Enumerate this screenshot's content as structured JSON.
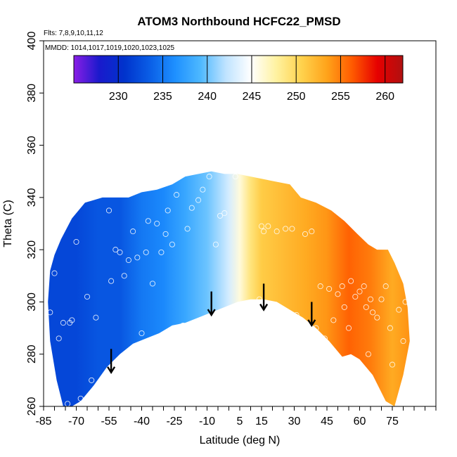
{
  "chart_data": {
    "type": "heatmap",
    "title": "ATOM3 Northbound HCFC22_PMSD",
    "flights_label": "Flts: 7,8,9,10,11,12",
    "dates_label": "MMDD: 1014,1017,1019,1020,1023,1025",
    "xlabel": "Latitude (deg N)",
    "ylabel": "Theta (C)",
    "xlim": [
      -85,
      95
    ],
    "ylim": [
      260,
      400
    ],
    "x_tick_labels": [
      "-85",
      "-70",
      "-55",
      "-40",
      "-25",
      "-10",
      "5",
      "15",
      "30",
      "45",
      "60",
      "75"
    ],
    "x_tick_values": [
      -85,
      -70,
      -55,
      -40,
      -25,
      -10,
      5,
      15,
      30,
      45,
      60,
      75
    ],
    "y_tick_labels": [
      "260",
      "280",
      "300",
      "320",
      "340",
      "360",
      "380",
      "400"
    ],
    "y_tick_values": [
      260,
      280,
      300,
      320,
      340,
      360,
      380,
      400
    ],
    "colorbar": {
      "range": [
        225,
        262
      ],
      "tick_labels": [
        "230",
        "235",
        "240",
        "245",
        "250",
        "255",
        "260"
      ],
      "tick_values": [
        230,
        235,
        240,
        245,
        250,
        255,
        260
      ],
      "colors": [
        "#8a1ee6",
        "#1a1acc",
        "#0033cc",
        "#0a5ee6",
        "#1e90ff",
        "#4db8ff",
        "#bfe3ff",
        "#ffffff",
        "#fff2a0",
        "#ffd24d",
        "#ffa31a",
        "#ff5a00",
        "#e60000",
        "#b01010"
      ]
    },
    "domain_boundary": [
      [
        -82,
        312
      ],
      [
        -80,
        318
      ],
      [
        -77,
        324
      ],
      [
        -72,
        332
      ],
      [
        -66,
        338
      ],
      [
        -58,
        340
      ],
      [
        -52,
        340
      ],
      [
        -46,
        340
      ],
      [
        -40,
        342
      ],
      [
        -33,
        343
      ],
      [
        -26,
        345
      ],
      [
        -20,
        348
      ],
      [
        -14,
        349
      ],
      [
        -8,
        350
      ],
      [
        -2,
        349
      ],
      [
        4,
        349
      ],
      [
        10,
        348
      ],
      [
        16,
        347
      ],
      [
        22,
        346
      ],
      [
        28,
        345
      ],
      [
        33,
        340
      ],
      [
        40,
        338
      ],
      [
        47,
        335
      ],
      [
        53,
        331
      ],
      [
        59,
        326
      ],
      [
        64,
        322
      ],
      [
        68,
        320
      ],
      [
        73,
        320
      ],
      [
        76,
        315
      ],
      [
        80,
        307
      ],
      [
        82,
        298
      ],
      [
        83,
        285
      ],
      [
        80,
        272
      ],
      [
        76,
        260
      ],
      [
        72,
        262
      ],
      [
        66,
        272
      ],
      [
        60,
        278
      ],
      [
        56,
        280
      ],
      [
        52,
        279
      ],
      [
        46,
        285
      ],
      [
        40,
        290
      ],
      [
        34,
        294
      ],
      [
        28,
        297
      ],
      [
        22,
        300
      ],
      [
        16,
        301
      ],
      [
        10,
        301
      ],
      [
        4,
        300
      ],
      [
        -2,
        298
      ],
      [
        -8,
        296
      ],
      [
        -14,
        294
      ],
      [
        -20,
        292
      ],
      [
        -26,
        291
      ],
      [
        -32,
        288
      ],
      [
        -38,
        286
      ],
      [
        -44,
        284
      ],
      [
        -50,
        280
      ],
      [
        -56,
        275
      ],
      [
        -62,
        268
      ],
      [
        -68,
        262
      ],
      [
        -72,
        260
      ],
      [
        -76,
        260
      ],
      [
        -79,
        270
      ],
      [
        -82,
        285
      ],
      [
        -83,
        300
      ]
    ],
    "value_field_anchors": [
      {
        "lat": -80,
        "value": 232
      },
      {
        "lat": -70,
        "value": 232
      },
      {
        "lat": -60,
        "value": 233
      },
      {
        "lat": -50,
        "value": 233
      },
      {
        "lat": -40,
        "value": 235
      },
      {
        "lat": -30,
        "value": 236
      },
      {
        "lat": -20,
        "value": 238
      },
      {
        "lat": -10,
        "value": 240
      },
      {
        "lat": 0,
        "value": 243
      },
      {
        "lat": 5,
        "value": 246
      },
      {
        "lat": 10,
        "value": 249
      },
      {
        "lat": 15,
        "value": 251
      },
      {
        "lat": 25,
        "value": 252
      },
      {
        "lat": 35,
        "value": 253
      },
      {
        "lat": 45,
        "value": 254
      },
      {
        "lat": 55,
        "value": 256
      },
      {
        "lat": 65,
        "value": 255
      },
      {
        "lat": 75,
        "value": 253
      },
      {
        "lat": 82,
        "value": 254
      }
    ],
    "sample_points": [
      [
        -82,
        296
      ],
      [
        -80,
        311
      ],
      [
        -78,
        286
      ],
      [
        -76,
        292
      ],
      [
        -74,
        261
      ],
      [
        -73,
        292
      ],
      [
        -72,
        293
      ],
      [
        -70,
        323
      ],
      [
        -68,
        263
      ],
      [
        -65,
        302
      ],
      [
        -63,
        270
      ],
      [
        -61,
        294
      ],
      [
        -55,
        335
      ],
      [
        -54,
        308
      ],
      [
        -52,
        320
      ],
      [
        -50,
        319
      ],
      [
        -48,
        310
      ],
      [
        -46,
        316
      ],
      [
        -44,
        327
      ],
      [
        -42,
        317
      ],
      [
        -40,
        288
      ],
      [
        -38,
        319
      ],
      [
        -37,
        331
      ],
      [
        -35,
        307
      ],
      [
        -33,
        330
      ],
      [
        -31,
        319
      ],
      [
        -29,
        326
      ],
      [
        -28,
        335
      ],
      [
        -26,
        322
      ],
      [
        -24,
        341
      ],
      [
        -21,
        291
      ],
      [
        -19,
        328
      ],
      [
        -17,
        336
      ],
      [
        -14,
        339
      ],
      [
        -12,
        343
      ],
      [
        -9,
        348
      ],
      [
        -6,
        322
      ],
      [
        -4,
        333
      ],
      [
        -2,
        334
      ],
      [
        0,
        297
      ],
      [
        3,
        348
      ],
      [
        14,
        301
      ],
      [
        15,
        329
      ],
      [
        16,
        327
      ],
      [
        18,
        329
      ],
      [
        20,
        296
      ],
      [
        22,
        327
      ],
      [
        26,
        328
      ],
      [
        29,
        328
      ],
      [
        31,
        295
      ],
      [
        35,
        326
      ],
      [
        38,
        327
      ],
      [
        40,
        290
      ],
      [
        42,
        306
      ],
      [
        44,
        286
      ],
      [
        46,
        305
      ],
      [
        48,
        293
      ],
      [
        50,
        303
      ],
      [
        52,
        306
      ],
      [
        53,
        298
      ],
      [
        55,
        290
      ],
      [
        56,
        308
      ],
      [
        58,
        302
      ],
      [
        60,
        304
      ],
      [
        62,
        306
      ],
      [
        63,
        298
      ],
      [
        64,
        280
      ],
      [
        65,
        301
      ],
      [
        66,
        296
      ],
      [
        68,
        294
      ],
      [
        70,
        301
      ],
      [
        72,
        306
      ],
      [
        74,
        290
      ],
      [
        75,
        276
      ],
      [
        76,
        322
      ],
      [
        78,
        297
      ],
      [
        80,
        285
      ],
      [
        81,
        300
      ]
    ],
    "arrows": [
      {
        "lat": -54,
        "theta_from": 282,
        "theta_to": 273
      },
      {
        "lat": -8,
        "theta_from": 304,
        "theta_to": 295
      },
      {
        "lat": 16,
        "theta_from": 307,
        "theta_to": 297
      },
      {
        "lat": 38,
        "theta_from": 300,
        "theta_to": 291
      }
    ]
  }
}
